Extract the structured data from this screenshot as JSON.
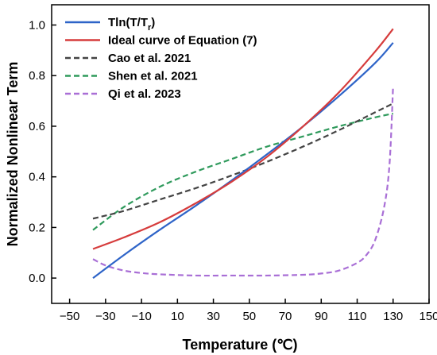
{
  "chart_data": {
    "type": "line",
    "xlabel": "Temperature (℃)",
    "ylabel": "Normalized Nonlinear Term",
    "xlim": [
      -60,
      150
    ],
    "ylim": [
      -0.1,
      1.08
    ],
    "x_ticks": [
      -50,
      -30,
      -10,
      10,
      30,
      50,
      70,
      90,
      110,
      130,
      150
    ],
    "y_ticks": [
      0.0,
      0.2,
      0.4,
      0.6,
      0.8,
      1.0
    ],
    "y_tick_labels": [
      "0.0",
      "0.2",
      "0.4",
      "0.6",
      "0.8",
      "1.0"
    ],
    "grid": false,
    "legend_position": "top-left",
    "series": [
      {
        "name": "Tln(T/T",
        "name_subscript": "r",
        "name_suffix": ")",
        "color": "#2e64c8",
        "dash": "solid",
        "x": [
          -37,
          -20,
          0,
          20,
          40,
          60,
          80,
          100,
          120,
          130
        ],
        "y": [
          0.0,
          0.09,
          0.19,
          0.285,
          0.385,
          0.49,
          0.6,
          0.72,
          0.85,
          0.93
        ]
      },
      {
        "name": "Ideal curve of Equation (7)",
        "color": "#d63c3c",
        "dash": "solid",
        "x": [
          -37,
          -20,
          0,
          20,
          40,
          60,
          80,
          100,
          120,
          130
        ],
        "y": [
          0.115,
          0.16,
          0.22,
          0.295,
          0.38,
          0.48,
          0.6,
          0.735,
          0.895,
          0.985
        ]
      },
      {
        "name": "Cao et al. 2021",
        "color": "#444444",
        "dash": "dashed",
        "x": [
          -37,
          -20,
          0,
          20,
          40,
          60,
          80,
          100,
          120,
          130
        ],
        "y": [
          0.235,
          0.265,
          0.31,
          0.355,
          0.405,
          0.46,
          0.52,
          0.585,
          0.655,
          0.69
        ]
      },
      {
        "name": "Shen et al. 2021",
        "color": "#2f9a5c",
        "dash": "dashed",
        "x": [
          -37,
          -20,
          0,
          20,
          40,
          60,
          80,
          100,
          120,
          130
        ],
        "y": [
          0.19,
          0.28,
          0.36,
          0.42,
          0.47,
          0.52,
          0.56,
          0.6,
          0.635,
          0.65
        ]
      },
      {
        "name": "Qi et al. 2023",
        "color": "#a96fd6",
        "dash": "dashed",
        "x": [
          -37,
          -30,
          -20,
          -10,
          0,
          20,
          40,
          60,
          80,
          90,
          100,
          110,
          115,
          120,
          125,
          128,
          130
        ],
        "y": [
          0.075,
          0.05,
          0.03,
          0.02,
          0.015,
          0.01,
          0.01,
          0.01,
          0.013,
          0.018,
          0.03,
          0.06,
          0.09,
          0.15,
          0.28,
          0.45,
          0.76
        ]
      }
    ]
  }
}
